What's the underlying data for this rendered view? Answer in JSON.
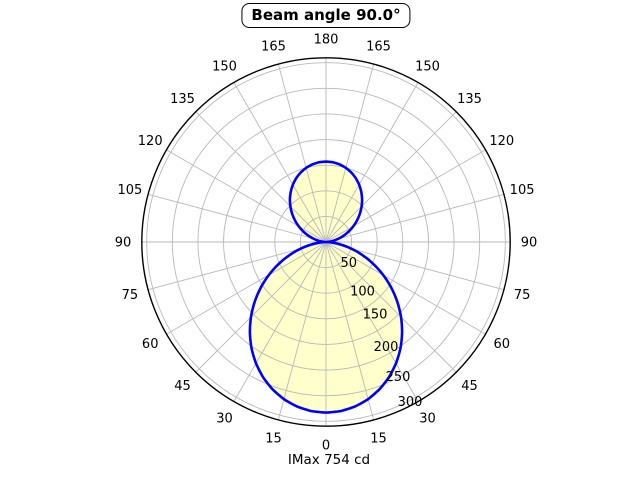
{
  "header": {
    "title": "Beam angle 90.0°"
  },
  "footer": {
    "imax": "IMax 754 cd"
  },
  "chart_data": {
    "type": "line",
    "subtype": "polar-luminous-intensity-distribution",
    "title": "Beam angle 90.0°",
    "beam_angle_deg": 90.0,
    "imax_cd": 754,
    "imax_label": "IMax 754 cd",
    "angular_grid_step_deg": 15,
    "angular_tick_labels": [
      0,
      15,
      30,
      45,
      60,
      75,
      90,
      105,
      120,
      135,
      150,
      165,
      180
    ],
    "angular_labels_mirrored": true,
    "radial_ticks": [
      50,
      100,
      150,
      200,
      250,
      300
    ],
    "radial_grid_step": 50,
    "radial_grid_max": 350,
    "grid": true,
    "legend": null,
    "series": [
      {
        "name": "intensity-curve",
        "symmetric_about_vertical_axis": true,
        "angle_convention": "0 deg = straight down, 180 deg = straight up",
        "points_deg_r": [
          [
            0,
            333
          ],
          [
            5,
            331.3
          ],
          [
            10,
            326.1
          ],
          [
            15,
            317.6
          ],
          [
            20,
            305.8
          ],
          [
            25,
            291.0
          ],
          [
            30,
            273.4
          ],
          [
            35,
            253.4
          ],
          [
            40,
            231.1
          ],
          [
            45,
            207.1
          ],
          [
            50,
            181.7
          ],
          [
            55,
            155.5
          ],
          [
            60,
            128.8
          ],
          [
            65,
            102.3
          ],
          [
            70,
            76.6
          ],
          [
            75,
            52.3
          ],
          [
            80,
            30.2
          ],
          [
            85,
            11.8
          ],
          [
            90,
            0
          ],
          [
            95,
            5.8
          ],
          [
            100,
            14.8
          ],
          [
            105,
            25.3
          ],
          [
            110,
            36.9
          ],
          [
            115,
            49.1
          ],
          [
            120,
            61.6
          ],
          [
            125,
            74.1
          ],
          [
            130,
            86.4
          ],
          [
            135,
            98.3
          ],
          [
            140,
            109.6
          ],
          [
            145,
            119.9
          ],
          [
            150,
            129.3
          ],
          [
            155,
            137.5
          ],
          [
            160,
            144.4
          ],
          [
            165,
            149.8
          ],
          [
            170,
            153.8
          ],
          [
            175,
            156.2
          ],
          [
            180,
            157
          ]
        ]
      }
    ],
    "colors": {
      "curve": "#0000ff",
      "fill": "#ffffcc",
      "grid": "#b9b9b9",
      "spine": "#000000",
      "text": "#000000",
      "background": "#ffffff"
    }
  }
}
